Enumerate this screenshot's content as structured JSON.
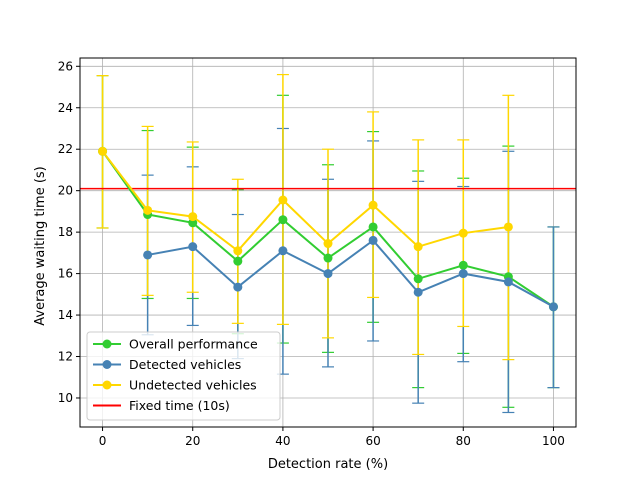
{
  "chart_data": {
    "type": "line",
    "title": "",
    "xlabel": "Detection rate (%)",
    "ylabel": "Average waiting time (s)",
    "xlim": [
      -5,
      105
    ],
    "ylim": [
      8.6,
      26.4
    ],
    "xticks": [
      0,
      20,
      40,
      60,
      80,
      100
    ],
    "yticks": [
      10,
      12,
      14,
      16,
      18,
      20,
      22,
      24,
      26
    ],
    "grid": true,
    "legend_position": "lower-left",
    "series": [
      {
        "name": "Overall performance",
        "color": "#32cd32",
        "x": [
          0,
          10,
          20,
          30,
          40,
          50,
          60,
          70,
          80,
          90,
          100
        ],
        "y": [
          21.9,
          18.85,
          18.45,
          16.6,
          18.6,
          16.75,
          18.25,
          15.75,
          16.4,
          15.85,
          14.4
        ],
        "err_low": [
          18.2,
          14.8,
          14.8,
          13.1,
          12.65,
          12.2,
          13.65,
          10.5,
          12.15,
          9.55,
          10.5
        ],
        "err_high": [
          25.55,
          22.9,
          22.1,
          20.05,
          24.6,
          21.25,
          22.85,
          20.95,
          20.6,
          22.15,
          18.25
        ]
      },
      {
        "name": "Detected vehicles",
        "color": "#4682b4",
        "x": [
          10,
          20,
          30,
          40,
          50,
          60,
          70,
          80,
          90,
          100
        ],
        "y": [
          16.9,
          17.3,
          15.35,
          17.1,
          16.0,
          17.6,
          15.1,
          16.0,
          15.6,
          14.4
        ],
        "err_low": [
          13.05,
          13.5,
          11.9,
          11.15,
          11.5,
          12.75,
          9.75,
          11.75,
          9.3,
          10.5
        ],
        "err_high": [
          20.75,
          21.15,
          18.85,
          23.0,
          20.55,
          22.4,
          20.45,
          20.2,
          21.9,
          18.25
        ]
      },
      {
        "name": "Undetected vehicles",
        "color": "#ffd700",
        "x": [
          0,
          10,
          20,
          30,
          40,
          50,
          60,
          70,
          80,
          90
        ],
        "y": [
          21.9,
          19.05,
          18.75,
          17.1,
          19.55,
          17.45,
          19.3,
          17.3,
          17.95,
          18.25
        ],
        "err_low": [
          18.2,
          14.95,
          15.1,
          13.6,
          13.55,
          12.9,
          14.85,
          12.1,
          13.45,
          11.85
        ],
        "err_high": [
          25.55,
          23.1,
          22.35,
          20.55,
          25.6,
          22.0,
          23.8,
          22.45,
          22.45,
          24.6
        ]
      },
      {
        "name": "Fixed time (10s)",
        "color": "#ff0000",
        "type": "hline",
        "y": 20.1
      }
    ]
  }
}
